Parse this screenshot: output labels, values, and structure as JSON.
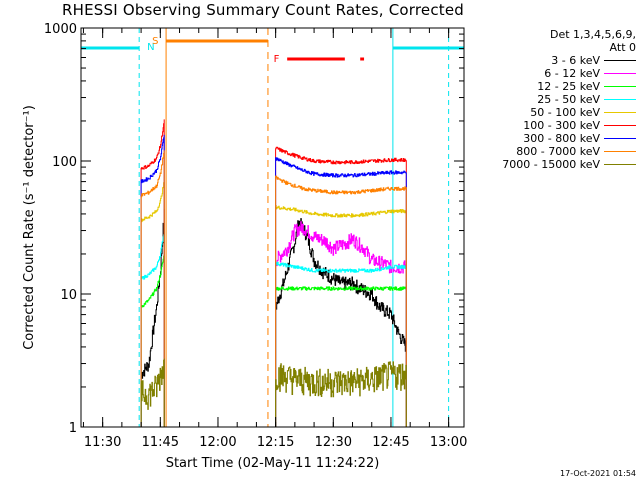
{
  "chart_data": {
    "type": "line",
    "title": "RHESSI Observing Summary Count Rates, Corrected",
    "xlabel": "Start Time (02-May-11 11:24:22)",
    "ylabel": "Corrected Count Rate (s⁻¹ detector⁻¹)",
    "yscale": "log",
    "ylim": [
      1,
      1000
    ],
    "xlim": [
      "11:24:22",
      "13:04:00"
    ],
    "x_ticks": [
      "11:30",
      "11:45",
      "12:00",
      "12:15",
      "12:30",
      "12:45",
      "13:00"
    ],
    "y_ticks": [
      "1",
      "10",
      "100",
      "1000"
    ],
    "legend_header": [
      "Det 1,3,4,5,6,9,",
      "Att 0"
    ],
    "footer_stamp": "17-Oct-2021 01:54",
    "flags": {
      "night_label": "N",
      "saa_label": "S",
      "flare_label": "F",
      "night_color": "#00e5ee",
      "saa_color": "#ff8000",
      "flare_color": "#ff0000"
    },
    "series": [
      {
        "name": "3 - 6 keV",
        "color": "#000000",
        "seg1": {
          "x": [
            "11:40:00",
            "11:42:00",
            "11:43:00",
            "11:44:00",
            "11:45:00",
            "11:46:00"
          ],
          "y": [
            2.5,
            3,
            5,
            8,
            15,
            40
          ]
        },
        "seg2": {
          "x": [
            "12:15:00",
            "12:17:00",
            "12:20:00",
            "12:21:00",
            "12:23:00",
            "12:25:00",
            "12:27:00",
            "12:30:00",
            "12:32:00",
            "12:35:00",
            "12:37:00",
            "12:40:00",
            "12:42:00",
            "12:45:00",
            "12:47:00",
            "12:49:00"
          ],
          "y": [
            8,
            12,
            25,
            35,
            28,
            18,
            15,
            13,
            12,
            12,
            11,
            10,
            8,
            7,
            5,
            4
          ]
        }
      },
      {
        "name": "6 - 12 keV",
        "color": "#ff00ff",
        "seg1": {
          "x": [],
          "y": []
        },
        "seg2": {
          "x": [
            "12:15:00",
            "12:18:00",
            "12:20:00",
            "12:22:00",
            "12:25:00",
            "12:28:00",
            "12:30:00",
            "12:33:00",
            "12:35:00",
            "12:38:00",
            "12:40:00",
            "12:43:00",
            "12:45:00",
            "12:49:00"
          ],
          "y": [
            18,
            22,
            30,
            32,
            27,
            25,
            22,
            24,
            26,
            22,
            18,
            17,
            16,
            16
          ]
        }
      },
      {
        "name": "12 - 25 keV",
        "color": "#00ff00",
        "seg1": {
          "x": [
            "11:40:00",
            "11:42:00",
            "11:44:00",
            "11:45:00",
            "11:46:00"
          ],
          "y": [
            8,
            9,
            11,
            14,
            20
          ]
        },
        "seg2": {
          "x": [
            "12:15:00",
            "12:20:00",
            "12:25:00",
            "12:30:00",
            "12:35:00",
            "12:40:00",
            "12:45:00",
            "12:49:00"
          ],
          "y": [
            11,
            11,
            11,
            11,
            11,
            11,
            11,
            11
          ]
        }
      },
      {
        "name": "25 - 50 keV",
        "color": "#00ffff",
        "seg1": {
          "x": [
            "11:40:00",
            "11:42:00",
            "11:44:00",
            "11:45:00",
            "11:46:00"
          ],
          "y": [
            13,
            14,
            16,
            20,
            30
          ]
        },
        "seg2": {
          "x": [
            "12:15:00",
            "12:20:00",
            "12:25:00",
            "12:30:00",
            "12:35:00",
            "12:40:00",
            "12:45:00",
            "12:49:00"
          ],
          "y": [
            17,
            16,
            15,
            15,
            15,
            15,
            16,
            16
          ]
        }
      },
      {
        "name": "50 - 100 keV",
        "color": "#e6c800",
        "seg1": {
          "x": [
            "11:40:00",
            "11:42:00",
            "11:44:00",
            "11:45:00",
            "11:46:00"
          ],
          "y": [
            36,
            38,
            42,
            50,
            70
          ]
        },
        "seg2": {
          "x": [
            "12:15:00",
            "12:20:00",
            "12:25:00",
            "12:30:00",
            "12:35:00",
            "12:40:00",
            "12:45:00",
            "12:49:00"
          ],
          "y": [
            45,
            43,
            40,
            39,
            39,
            40,
            42,
            42
          ]
        }
      },
      {
        "name": "100 - 300 keV",
        "color": "#ff0000",
        "seg1": {
          "x": [
            "11:40:00",
            "11:42:00",
            "11:44:00",
            "11:45:00",
            "11:46:00"
          ],
          "y": [
            88,
            92,
            105,
            130,
            200
          ]
        },
        "seg2": {
          "x": [
            "12:15:00",
            "12:18:00",
            "12:22:00",
            "12:25:00",
            "12:30:00",
            "12:35:00",
            "12:40:00",
            "12:45:00",
            "12:49:00"
          ],
          "y": [
            125,
            115,
            105,
            100,
            98,
            98,
            100,
            102,
            102
          ]
        }
      },
      {
        "name": "300 - 800 keV",
        "color": "#0000ff",
        "seg1": {
          "x": [
            "11:40:00",
            "11:42:00",
            "11:44:00",
            "11:45:00",
            "11:46:00"
          ],
          "y": [
            70,
            74,
            85,
            105,
            160
          ]
        },
        "seg2": {
          "x": [
            "12:15:00",
            "12:18:00",
            "12:22:00",
            "12:25:00",
            "12:30:00",
            "12:35:00",
            "12:40:00",
            "12:45:00",
            "12:49:00"
          ],
          "y": [
            105,
            95,
            85,
            80,
            78,
            78,
            80,
            82,
            82
          ]
        }
      },
      {
        "name": "800 - 7000 keV",
        "color": "#ff8000",
        "seg1": {
          "x": [
            "11:40:00",
            "11:42:00",
            "11:44:00",
            "11:45:00",
            "11:46:00"
          ],
          "y": [
            55,
            58,
            65,
            80,
            120
          ]
        },
        "seg2": {
          "x": [
            "12:15:00",
            "12:18:00",
            "12:22:00",
            "12:25:00",
            "12:30:00",
            "12:35:00",
            "12:40:00",
            "12:45:00",
            "12:49:00"
          ],
          "y": [
            75,
            68,
            62,
            60,
            58,
            58,
            60,
            62,
            62
          ]
        }
      },
      {
        "name": "7000 - 15000 keV",
        "color": "#808000",
        "seg1": {
          "x": [
            "11:40:00",
            "11:42:00",
            "11:44:00",
            "11:45:00",
            "11:46:00"
          ],
          "y": [
            1.8,
            1.8,
            2,
            2.5,
            3
          ]
        },
        "seg2": {
          "x": [
            "12:15:00",
            "12:20:00",
            "12:25:00",
            "12:30:00",
            "12:35:00",
            "12:40:00",
            "12:45:00",
            "12:49:00"
          ],
          "y": [
            2.5,
            2.3,
            2.2,
            2.2,
            2.2,
            2.3,
            2.5,
            2.5
          ]
        }
      }
    ]
  }
}
